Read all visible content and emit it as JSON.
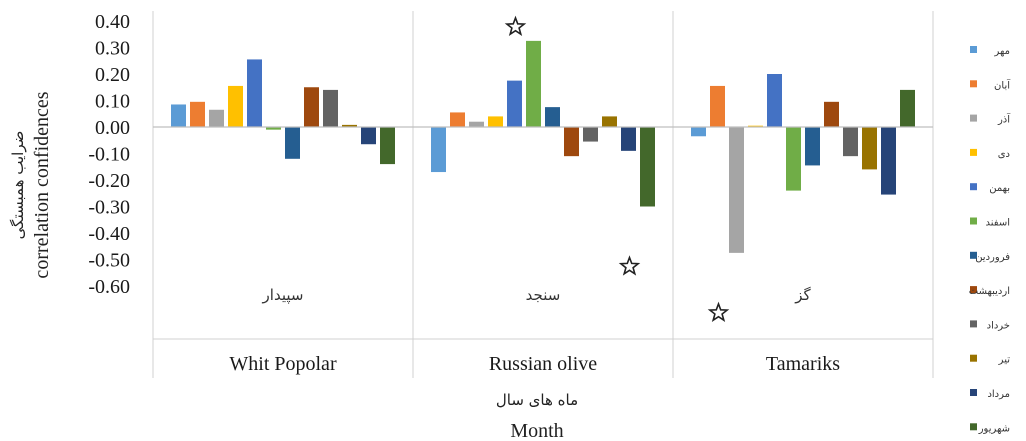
{
  "chart_data": {
    "type": "bar",
    "y_ticks": [
      "0.40",
      "0.30",
      "0.20",
      "0.10",
      "0.00",
      "-0.10",
      "-0.20",
      "-0.30",
      "-0.40",
      "-0.50",
      "-0.60"
    ],
    "ylim": [
      -0.6,
      0.4
    ],
    "ylabel_fa": "ضرایب همبستگی",
    "ylabel_en": "correlation confidences",
    "xlabel_fa": "ماه های سال",
    "xlabel_en": "Month",
    "groups": [
      {
        "label_fa": "سپیدار",
        "label_en": "Whit Popolar"
      },
      {
        "label_fa": "سنجد",
        "label_en": "Russian olive"
      },
      {
        "label_fa": "گز",
        "label_en": "Tamariks"
      }
    ],
    "series": [
      {
        "name": "مهر",
        "color": "#5B9BD5",
        "values": [
          0.085,
          -0.17,
          -0.035
        ]
      },
      {
        "name": "آبان",
        "color": "#ED7D31",
        "values": [
          0.095,
          0.055,
          0.155
        ]
      },
      {
        "name": "آذر",
        "color": "#A5A5A5",
        "values": [
          0.065,
          0.02,
          -0.475
        ]
      },
      {
        "name": "دی",
        "color": "#FFC000",
        "values": [
          0.155,
          0.04,
          0.005
        ]
      },
      {
        "name": "بهمن",
        "color": "#4472C4",
        "values": [
          0.255,
          0.175,
          0.2
        ]
      },
      {
        "name": "اسفند",
        "color": "#70AD47",
        "values": [
          -0.01,
          0.325,
          -0.24
        ]
      },
      {
        "name": "فروردین",
        "color": "#255E91",
        "values": [
          -0.12,
          0.075,
          -0.145
        ]
      },
      {
        "name": "اردیبهشت",
        "color": "#9E480E",
        "values": [
          0.15,
          -0.11,
          0.095
        ]
      },
      {
        "name": "خرداد",
        "color": "#636363",
        "values": [
          0.14,
          -0.055,
          -0.11
        ]
      },
      {
        "name": "تیر",
        "color": "#997300",
        "values": [
          0.008,
          0.04,
          -0.16
        ]
      },
      {
        "name": "مرداد",
        "color": "#264478",
        "values": [
          -0.065,
          -0.09,
          -0.255
        ]
      },
      {
        "name": "شهریور",
        "color": "#43682B",
        "values": [
          -0.14,
          -0.3,
          0.14
        ]
      }
    ],
    "significance_markers": [
      {
        "group": 1,
        "series": 5,
        "value": 0.325
      },
      {
        "group": 1,
        "series": 11,
        "value": -0.3
      },
      {
        "group": 2,
        "series": 2,
        "value": -0.475
      }
    ],
    "grid": true,
    "legend_position": "right"
  }
}
